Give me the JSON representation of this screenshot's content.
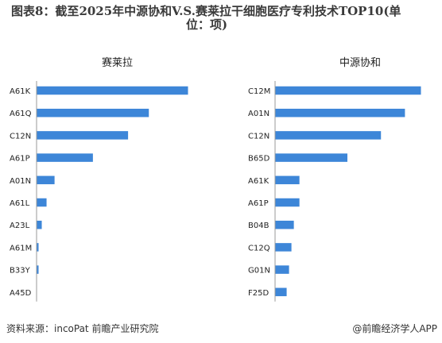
{
  "title": {
    "line1": "图表8：截至2025年中源协和V.S.赛莱拉干细胞医疗专利技术TOP10(单",
    "line2": "位：项)"
  },
  "colors": {
    "bar": "#3d86d8",
    "axis": "#999999"
  },
  "footer": {
    "source": "资料来源：incoPat 前瞻产业研究院",
    "brand": "@前瞻经济学人APP"
  },
  "chart_data": [
    {
      "type": "bar",
      "orientation": "horizontal",
      "title": "赛莱拉",
      "categories": [
        "A61K",
        "A61Q",
        "C12N",
        "A61P",
        "A01N",
        "A61L",
        "A23L",
        "A61M",
        "B33Y",
        "A45D"
      ],
      "values": [
        189,
        140,
        114,
        70,
        22,
        12,
        6,
        2,
        2,
        0
      ]
    },
    {
      "type": "bar",
      "orientation": "horizontal",
      "title": "中源协和",
      "categories": [
        "C12M",
        "A01N",
        "C12N",
        "B65D",
        "A61K",
        "A61P",
        "B04B",
        "C12Q",
        "G01N",
        "F25D"
      ],
      "values": [
        182,
        162,
        132,
        90,
        30,
        30,
        23,
        20,
        17,
        14
      ]
    }
  ]
}
